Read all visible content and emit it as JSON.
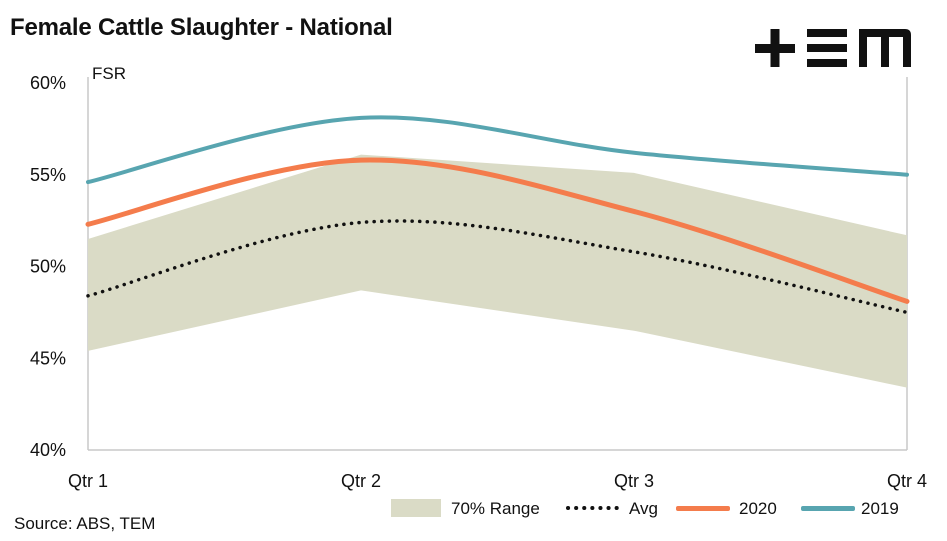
{
  "title": "Female Cattle Slaughter - National",
  "source": "Source: ABS, TEM",
  "logo": {
    "name": "tem-logo",
    "text": "+EM"
  },
  "colors": {
    "range": "#dadbc6",
    "avg": "#111111",
    "s2020": "#f47c4c",
    "s2019": "#58a5b0",
    "axis": "#c8c8c8"
  },
  "chart_data": {
    "type": "line",
    "title": "Female Cattle Slaughter - National",
    "ylabel": "FSR",
    "xlabel": "",
    "categories": [
      "Qtr 1",
      "Qtr 2",
      "Qtr 3",
      "Qtr 4"
    ],
    "ylim": [
      40,
      60
    ],
    "yticks": [
      40,
      45,
      50,
      55,
      60
    ],
    "ytick_labels": [
      "40%",
      "45%",
      "50%",
      "55%",
      "60%"
    ],
    "grid": false,
    "legend_position": "bottom-right",
    "range": {
      "name": "70% Range",
      "low": [
        45.4,
        48.7,
        46.5,
        43.4
      ],
      "high": [
        51.5,
        56.1,
        55.1,
        51.7
      ]
    },
    "series": [
      {
        "name": "Avg",
        "values": [
          48.4,
          52.4,
          50.8,
          47.5
        ],
        "style": "dotted"
      },
      {
        "name": "2020",
        "values": [
          52.3,
          55.8,
          53.0,
          48.1
        ],
        "style": "solid"
      },
      {
        "name": "2019",
        "values": [
          54.6,
          58.1,
          56.2,
          55.0
        ],
        "style": "solid"
      }
    ]
  }
}
